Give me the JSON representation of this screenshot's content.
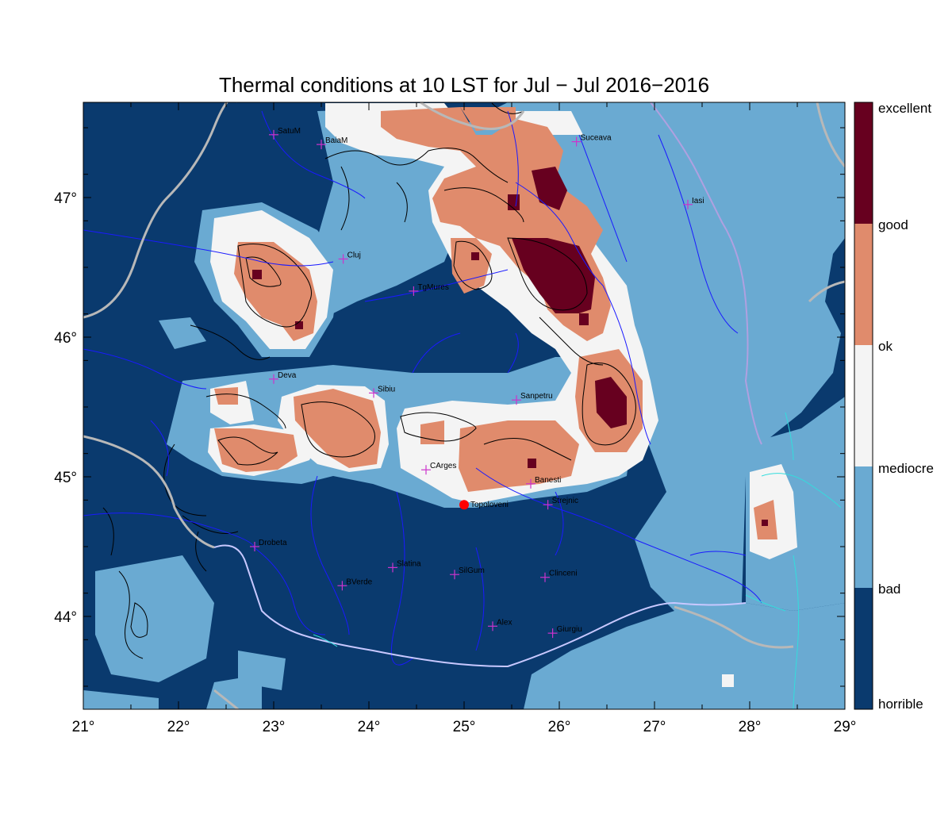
{
  "title": "Thermal conditions at 10 LST for Jul − Jul  2016−2016",
  "x_ticks": [
    "21°",
    "22°",
    "23°",
    "24°",
    "25°",
    "26°",
    "27°",
    "28°",
    "29°"
  ],
  "y_ticks": [
    "44°",
    "45°",
    "46°",
    "47°"
  ],
  "legend": [
    {
      "label": "excellent",
      "color": "#67001f"
    },
    {
      "label": "good",
      "color": "#e08b6c"
    },
    {
      "label": "ok",
      "color": "#f4f4f4"
    },
    {
      "label": "mediocre",
      "color": "#f4f4f4"
    },
    {
      "label": "bad",
      "color": "#6aaad2"
    },
    {
      "label": "horrible",
      "color": "#0a3a6e"
    }
  ],
  "cities": [
    {
      "name": "SatuM",
      "lon": 23.0,
      "lat": 47.45
    },
    {
      "name": "BaiaM",
      "lon": 23.5,
      "lat": 47.38
    },
    {
      "name": "Suceava",
      "lon": 26.18,
      "lat": 47.4
    },
    {
      "name": "Iasi",
      "lon": 27.35,
      "lat": 46.95
    },
    {
      "name": "Cluj",
      "lon": 23.73,
      "lat": 46.56
    },
    {
      "name": "TgMures",
      "lon": 24.47,
      "lat": 46.33
    },
    {
      "name": "Deva",
      "lon": 23.0,
      "lat": 45.7
    },
    {
      "name": "Sibiu",
      "lon": 24.05,
      "lat": 45.6
    },
    {
      "name": "Sanpetru",
      "lon": 25.55,
      "lat": 45.55
    },
    {
      "name": "CArges",
      "lon": 24.6,
      "lat": 45.05
    },
    {
      "name": "Banesti",
      "lon": 25.7,
      "lat": 44.95
    },
    {
      "name": "Strejnic",
      "lon": 25.88,
      "lat": 44.8
    },
    {
      "name": "Drobeta",
      "lon": 22.8,
      "lat": 44.5
    },
    {
      "name": "Slatina",
      "lon": 24.25,
      "lat": 44.35
    },
    {
      "name": "SilGum",
      "lon": 24.9,
      "lat": 44.3
    },
    {
      "name": "Clinceni",
      "lon": 25.85,
      "lat": 44.28
    },
    {
      "name": "BVerde",
      "lon": 23.72,
      "lat": 44.22
    },
    {
      "name": "Alex",
      "lon": 25.3,
      "lat": 43.93
    },
    {
      "name": "Giurgiu",
      "lon": 25.93,
      "lat": 43.88
    }
  ],
  "highlight": {
    "name": "Topoloveni",
    "lon": 25.0,
    "lat": 44.8,
    "color": "#ff0000"
  },
  "colors": {
    "horrible": "#0a3a6e",
    "bad": "#6aaad2",
    "mediocre": "#f4f4f4",
    "good": "#e08b6c",
    "excellent": "#67001f",
    "rivers": "#1a1aff",
    "border": "#b8b8b8",
    "city_marker": "#cc33cc",
    "coast": "#33dddd"
  }
}
